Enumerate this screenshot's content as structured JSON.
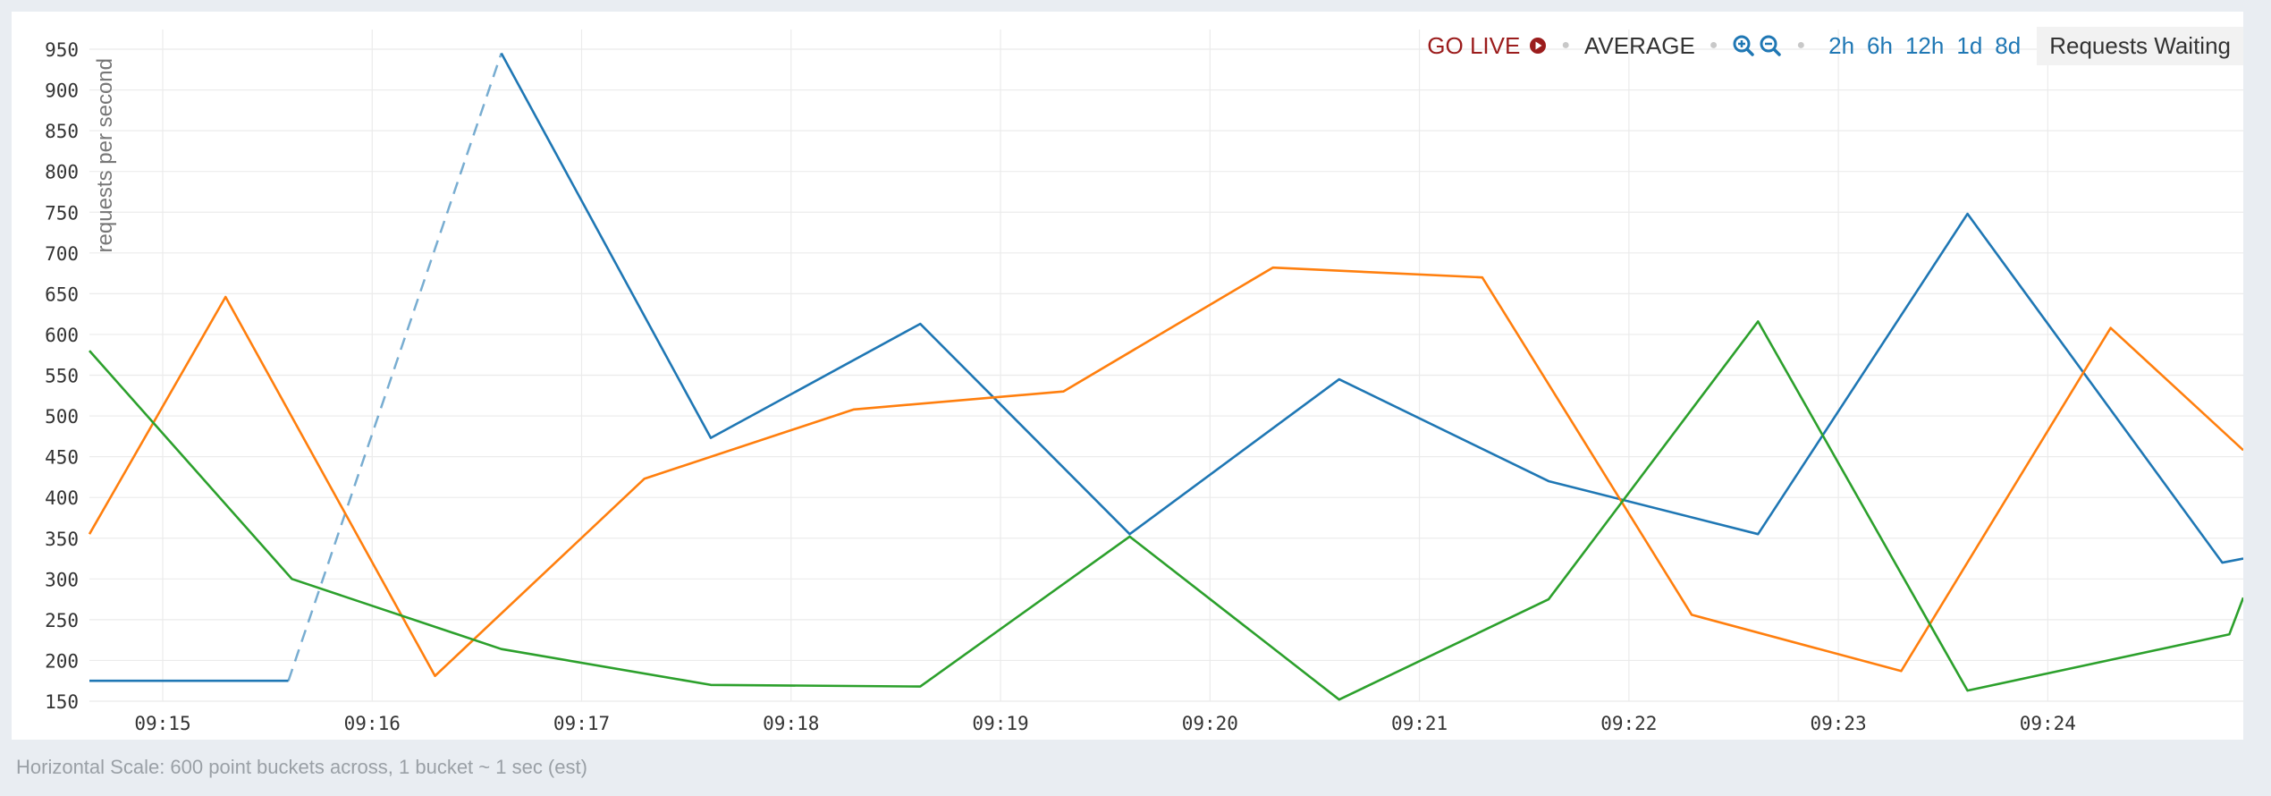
{
  "toolbar": {
    "go_live": "GO LIVE",
    "average": "AVERAGE",
    "ranges": [
      "2h",
      "6h",
      "12h",
      "1d",
      "8d"
    ],
    "series_label": "Requests Waiting"
  },
  "footer": {
    "text": "Horizontal Scale: 600 point buckets across, 1 bucket ~ 1 sec (est)"
  },
  "chart_data": {
    "type": "line",
    "ylabel": "requests per second",
    "ylim": [
      150,
      950
    ],
    "yticks": [
      150,
      200,
      250,
      300,
      350,
      400,
      450,
      500,
      550,
      600,
      650,
      700,
      750,
      800,
      850,
      900,
      950
    ],
    "xticks": [
      "09:15",
      "09:16",
      "09:17",
      "09:18",
      "09:19",
      "09:20",
      "09:21",
      "09:22",
      "09:23",
      "09:24"
    ],
    "xlim": [
      "09:14:39",
      "09:24:56"
    ],
    "grid": true,
    "series": [
      {
        "color": "#1f77b4",
        "points": [
          [
            "09:14:39",
            175
          ],
          [
            "09:15:36",
            175
          ],
          [
            "09:16:37",
            945
          ],
          [
            "09:17:37",
            473
          ],
          [
            "09:18:37",
            613
          ],
          [
            "09:19:37",
            355
          ],
          [
            "09:20:37",
            545
          ],
          [
            "09:21:37",
            420
          ],
          [
            "09:22:37",
            355
          ],
          [
            "09:23:37",
            748
          ],
          [
            "09:24:50",
            320
          ],
          [
            "09:24:56",
            325
          ]
        ],
        "dashed_segment": [
          "09:15:36",
          "09:16:37"
        ]
      },
      {
        "color": "#ff7f0e",
        "points": [
          [
            "09:14:39",
            355
          ],
          [
            "09:15:18",
            646
          ],
          [
            "09:16:18",
            181
          ],
          [
            "09:17:18",
            423
          ],
          [
            "09:18:18",
            508
          ],
          [
            "09:19:18",
            530
          ],
          [
            "09:20:18",
            682
          ],
          [
            "09:21:18",
            670
          ],
          [
            "09:22:18",
            256
          ],
          [
            "09:23:18",
            187
          ],
          [
            "09:24:18",
            608
          ],
          [
            "09:24:56",
            458
          ]
        ]
      },
      {
        "color": "#2ca02c",
        "points": [
          [
            "09:14:39",
            580
          ],
          [
            "09:15:37",
            300
          ],
          [
            "09:16:37",
            214
          ],
          [
            "09:17:37",
            170
          ],
          [
            "09:18:37",
            168
          ],
          [
            "09:19:37",
            352
          ],
          [
            "09:20:37",
            152
          ],
          [
            "09:21:37",
            275
          ],
          [
            "09:22:37",
            616
          ],
          [
            "09:23:37",
            163
          ],
          [
            "09:24:52",
            232
          ],
          [
            "09:24:56",
            277
          ]
        ]
      }
    ]
  }
}
